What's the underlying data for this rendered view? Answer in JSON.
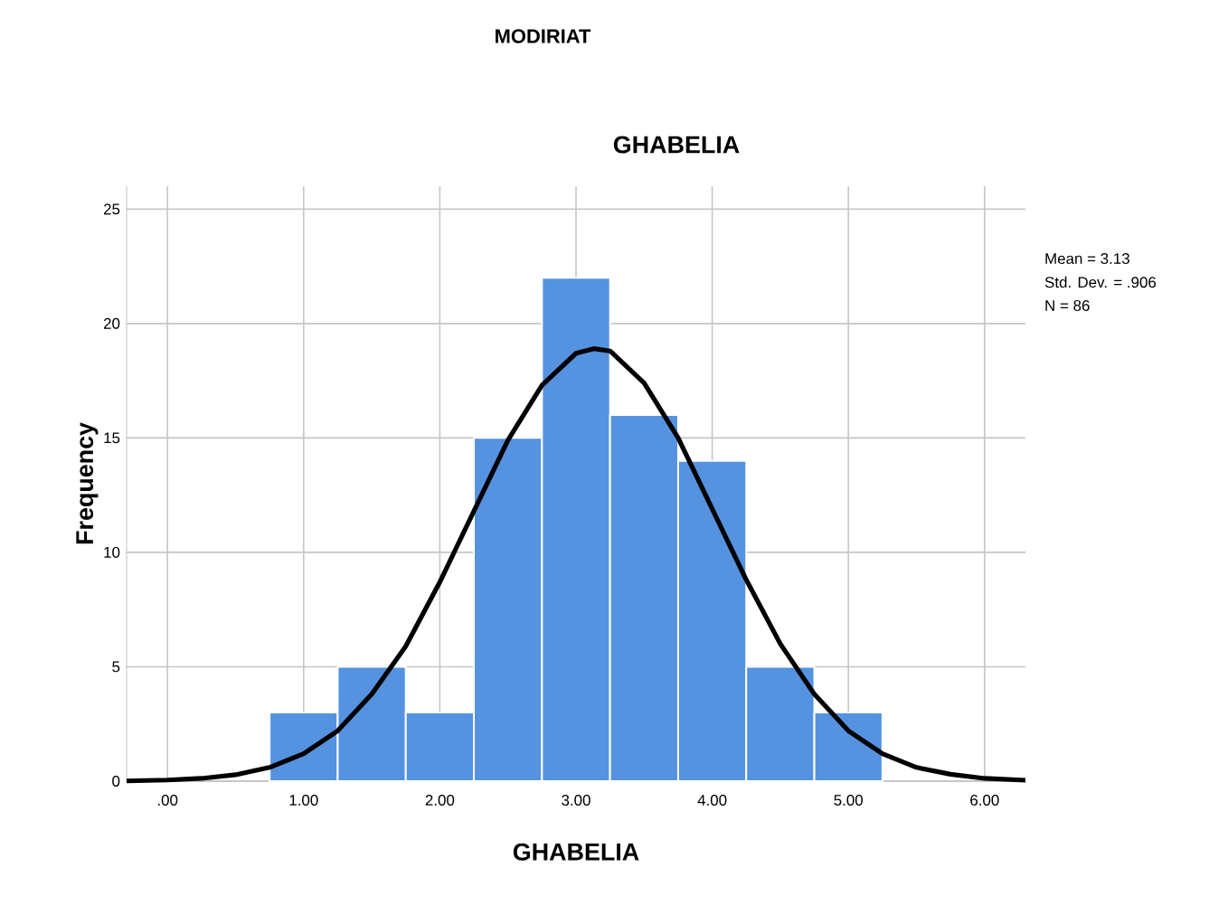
{
  "chart_data": {
    "type": "histogram",
    "title": "MODIRIAT",
    "subtitle": "GHABELIA",
    "xlabel": "GHABELIA",
    "ylabel": "Frequency",
    "bins": [
      0.75,
      1.25,
      1.75,
      2.25,
      2.75,
      3.25,
      3.75,
      4.25,
      4.75,
      5.25
    ],
    "values": [
      3,
      5,
      3,
      15,
      22,
      16,
      14,
      5,
      3
    ],
    "color": "#5592e0",
    "series": [
      {
        "type": "line",
        "color": "#000000",
        "x": [
          -0.3,
          0,
          0.25,
          0.5,
          0.75,
          1.0,
          1.25,
          1.5,
          1.75,
          2.0,
          2.25,
          2.5,
          2.75,
          3.0,
          3.13,
          3.25,
          3.5,
          3.75,
          4.0,
          4.25,
          4.5,
          4.75,
          5.0,
          5.25,
          5.5,
          5.75,
          6.0,
          6.3
        ],
        "values": [
          0.01,
          0.05,
          0.12,
          0.28,
          0.6,
          1.2,
          2.2,
          3.8,
          5.9,
          8.7,
          11.8,
          14.9,
          17.3,
          18.7,
          18.9,
          18.8,
          17.4,
          15.0,
          11.9,
          8.8,
          6.0,
          3.8,
          2.2,
          1.2,
          0.6,
          0.3,
          0.12,
          0.04
        ]
      }
    ],
    "xlim": [
      -0.3,
      6.3
    ],
    "ylim": [
      0,
      26
    ],
    "xticks": [
      {
        "value": 0,
        "label": ".00"
      },
      {
        "value": 1,
        "label": "1.00"
      },
      {
        "value": 2,
        "label": "2.00"
      },
      {
        "value": 3,
        "label": "3.00"
      },
      {
        "value": 4,
        "label": "4.00"
      },
      {
        "value": 5,
        "label": "5.00"
      },
      {
        "value": 6,
        "label": "6.00"
      }
    ],
    "yticks": [
      0,
      5,
      10,
      15,
      20,
      25
    ],
    "grid": true,
    "annotations": [
      "Mean = 3.13",
      "Std. Dev. = .906",
      "N = 86"
    ]
  }
}
